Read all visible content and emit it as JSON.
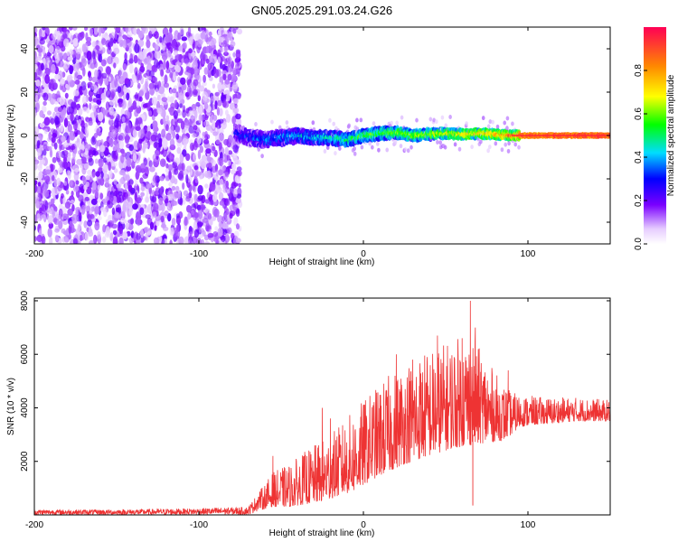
{
  "title": "GN05.2025.291.03.24.G26",
  "chart_data": [
    {
      "type": "heatmap",
      "title": "GN05.2025.291.03.24.G26",
      "xlabel": "Height of straight line (km)",
      "ylabel": "Frequency (Hz)",
      "xlim": [
        -200,
        150
      ],
      "ylim": [
        -50,
        50
      ],
      "xticks": [
        -200,
        -100,
        0,
        100
      ],
      "xtick_labels": [
        "-200",
        "-100",
        "0",
        "100"
      ],
      "yticks": [
        -40,
        -20,
        0,
        20,
        40
      ],
      "ytick_labels": [
        "-40",
        "-20",
        "0",
        "20",
        "40"
      ],
      "noise_region_x": [
        -200,
        -75
      ],
      "signal_band": {
        "center_freq": [
          [
            -78,
            1.5
          ],
          [
            -70,
            -1
          ],
          [
            -60,
            -2
          ],
          [
            -50,
            -1
          ],
          [
            -40,
            0
          ],
          [
            -30,
            -1
          ],
          [
            -20,
            -1
          ],
          [
            -10,
            -2
          ],
          [
            0,
            0
          ],
          [
            10,
            1
          ],
          [
            20,
            1.5
          ],
          [
            30,
            0
          ],
          [
            40,
            0.5
          ],
          [
            50,
            1
          ],
          [
            60,
            0.5
          ],
          [
            70,
            1
          ],
          [
            80,
            0.5
          ],
          [
            90,
            0
          ],
          [
            100,
            0
          ],
          [
            110,
            0
          ],
          [
            120,
            0
          ],
          [
            130,
            0
          ],
          [
            140,
            0
          ],
          [
            150,
            0
          ]
        ],
        "amplitude": [
          [
            -78,
            0.25
          ],
          [
            -60,
            0.35
          ],
          [
            -40,
            0.4
          ],
          [
            -20,
            0.45
          ],
          [
            0,
            0.55
          ],
          [
            20,
            0.6
          ],
          [
            40,
            0.65
          ],
          [
            60,
            0.75
          ],
          [
            80,
            0.8
          ],
          [
            90,
            0.9
          ],
          [
            150,
            0.95
          ]
        ]
      },
      "colorbar": {
        "label": "Normalized spectral amplitude",
        "range": [
          0,
          1
        ],
        "ticks": [
          0.0,
          0.2,
          0.4,
          0.6,
          0.8
        ],
        "tick_labels": [
          "0.0",
          "0.2",
          "0.4",
          "0.6",
          "0.8"
        ]
      }
    },
    {
      "type": "line",
      "xlabel": "Height of straight line (km)",
      "ylabel": "SNR (10 * v/v)",
      "xlim": [
        -200,
        150
      ],
      "ylim": [
        0,
        8100
      ],
      "xticks": [
        -200,
        -100,
        0,
        100
      ],
      "xtick_labels": [
        "-200",
        "-100",
        "0",
        "100"
      ],
      "yticks": [
        2000,
        4000,
        6000,
        8000
      ],
      "ytick_labels": [
        "2000",
        "4000",
        "6000",
        "8000"
      ],
      "series": [
        {
          "name": "SNR",
          "color": "#ee3333",
          "envelope_x": [
            -200,
            -150,
            -100,
            -70,
            -62,
            -55,
            -45,
            -35,
            -25,
            -15,
            -5,
            5,
            15,
            25,
            35,
            45,
            55,
            65,
            75,
            85,
            90,
            95,
            110,
            130,
            150
          ],
          "envelope_min": [
            0,
            0,
            0,
            0,
            200,
            300,
            300,
            400,
            500,
            700,
            900,
            1300,
            1600,
            1900,
            2100,
            2300,
            2500,
            2600,
            2700,
            2800,
            3000,
            3300,
            3400,
            3500,
            3500
          ],
          "envelope_max": [
            200,
            200,
            250,
            300,
            1000,
            1600,
            1900,
            2400,
            2800,
            3300,
            4000,
            4600,
            5200,
            5700,
            6100,
            6300,
            6600,
            6800,
            5800,
            4900,
            4600,
            4500,
            4400,
            4400,
            4300
          ],
          "spikes": [
            [
              -55,
              2200
            ],
            [
              -25,
              4000
            ],
            [
              -20,
              3600
            ],
            [
              20,
              6000
            ],
            [
              30,
              5800
            ],
            [
              45,
              6700
            ],
            [
              60,
              6600
            ],
            [
              65,
              8000
            ],
            [
              68,
              7000
            ],
            [
              88,
              5400
            ]
          ]
        }
      ]
    }
  ]
}
